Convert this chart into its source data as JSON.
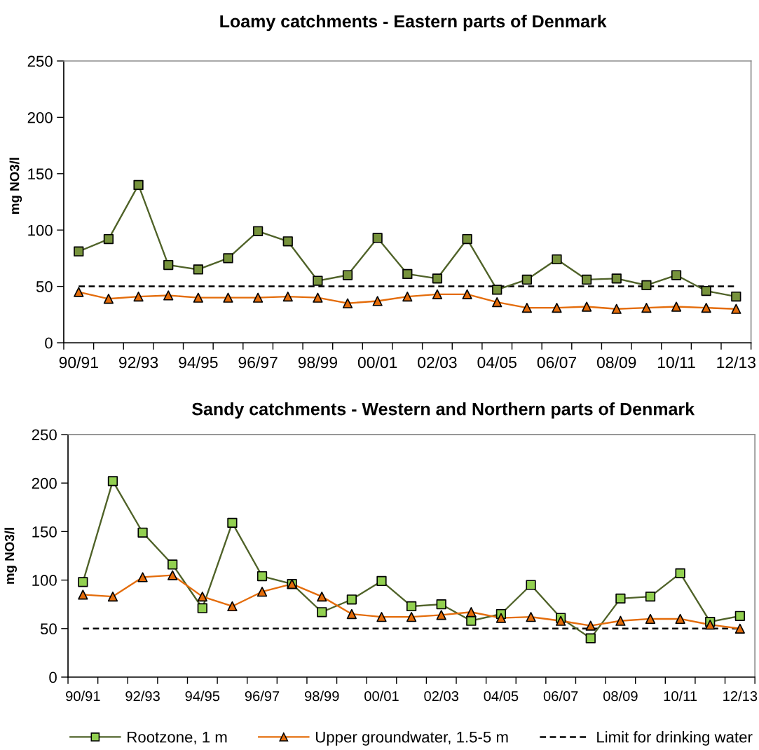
{
  "chart_data": [
    {
      "type": "line",
      "title": "Loamy catchments - Eastern parts of Denmark",
      "ylabel": "mg NO3/l",
      "categories": [
        "90/91",
        null,
        "92/93",
        null,
        "94/95",
        null,
        "96/97",
        null,
        "98/99",
        null,
        "00/01",
        null,
        "02/03",
        null,
        "04/05",
        null,
        "06/07",
        null,
        "08/09",
        null,
        "10/11",
        null,
        "12/13"
      ],
      "ylim": [
        0,
        250
      ],
      "yticks": [
        0,
        50,
        100,
        150,
        200,
        250
      ],
      "series": [
        {
          "color": "#4f6228",
          "marker": "square",
          "colors": [
            "#77933c",
            "#77933c",
            "#77933c",
            "#77933c",
            "#77933c",
            "#77933c",
            "#77933c",
            "#77933c",
            "#77933c",
            "#77933c",
            "#77933c",
            "#77933c",
            "#77933c",
            "#77933c",
            "#77933c",
            "#77933c",
            "#77933c",
            "#77933c",
            "#77933c",
            "#77933c",
            "#77933c",
            "#77933c",
            "#77933c"
          ],
          "values": [
            81,
            92,
            140,
            69,
            65,
            75,
            99,
            90,
            55,
            60,
            93,
            61,
            57,
            92,
            47,
            56,
            74,
            56,
            57,
            51,
            60,
            46,
            41
          ]
        },
        {
          "color": "#e46c0a",
          "marker": "triangle",
          "values": [
            45,
            39,
            41,
            42,
            40,
            40,
            40,
            41,
            40,
            35,
            37,
            41,
            43,
            43,
            36,
            31,
            31,
            32,
            30,
            31,
            32,
            31,
            30
          ]
        }
      ],
      "ref_lines": [
        {
          "axis": "y",
          "value": 50,
          "color": "#000000",
          "line_style": "dashed"
        }
      ]
    },
    {
      "type": "line",
      "title": "Sandy catchments - Western and Northern parts of Denmark",
      "ylabel": "mg NO3/l",
      "categories": [
        "90/91",
        null,
        "92/93",
        null,
        "94/95",
        null,
        "96/97",
        null,
        "98/99",
        null,
        "00/01",
        null,
        "02/03",
        null,
        "04/05",
        null,
        "06/07",
        null,
        "08/09",
        null,
        "10/11",
        null,
        "12/13"
      ],
      "ylim": [
        0,
        250
      ],
      "yticks": [
        0,
        50,
        100,
        150,
        200,
        250
      ],
      "legend": "bottom",
      "series": [
        {
          "name": "Rootzone, 1 m",
          "color": "#4f6228",
          "marker": "square",
          "colors": [
            "#92d050",
            "#92d050",
            "#92d050",
            "#92d050",
            "#92d050",
            "#92d050",
            "#92d050",
            "#92d050",
            "#92d050",
            "#92d050",
            "#92d050",
            "#92d050",
            "#92d050",
            "#92d050",
            "#92d050",
            "#92d050",
            "#92d050",
            "#92d050",
            "#92d050",
            "#92d050",
            "#92d050",
            "#92d050",
            "#92d050"
          ],
          "values": [
            98,
            202,
            149,
            116,
            71,
            159,
            104,
            96,
            67,
            80,
            99,
            73,
            75,
            58,
            65,
            95,
            61,
            40,
            81,
            83,
            107,
            57,
            63
          ]
        },
        {
          "name": "Upper groundwater, 1.5-5 m",
          "color": "#e46c0a",
          "marker": "triangle",
          "values": [
            85,
            83,
            103,
            105,
            83,
            73,
            88,
            96,
            83,
            65,
            62,
            62,
            64,
            67,
            61,
            62,
            58,
            53,
            58,
            60,
            60,
            54,
            50
          ]
        }
      ],
      "ref_lines": [
        {
          "axis": "y",
          "value": 50,
          "color": "#000000",
          "line_style": "dashed",
          "label": "Limit for drinking water"
        }
      ]
    }
  ]
}
